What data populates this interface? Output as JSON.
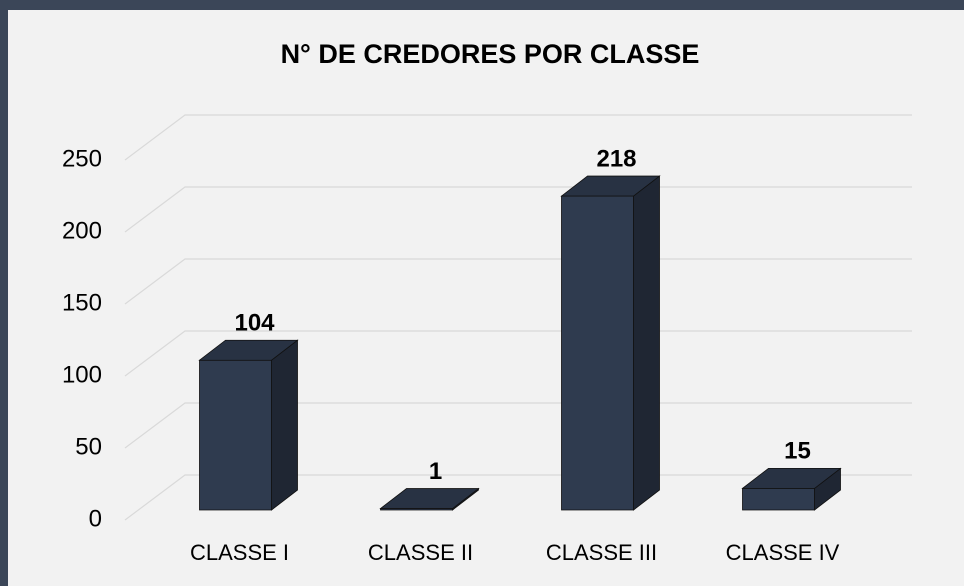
{
  "chart_data": {
    "type": "bar3d",
    "title": "N° DE CREDORES POR CLASSE",
    "categories": [
      "CLASSE I",
      "CLASSE II",
      "CLASSE III",
      "CLASSE IV"
    ],
    "values": [
      104,
      1,
      218,
      15
    ],
    "color": "#2f3b4f",
    "ylim": [
      0,
      250
    ],
    "yticks": [
      0,
      50,
      100,
      150,
      200,
      250
    ],
    "grid": true
  }
}
